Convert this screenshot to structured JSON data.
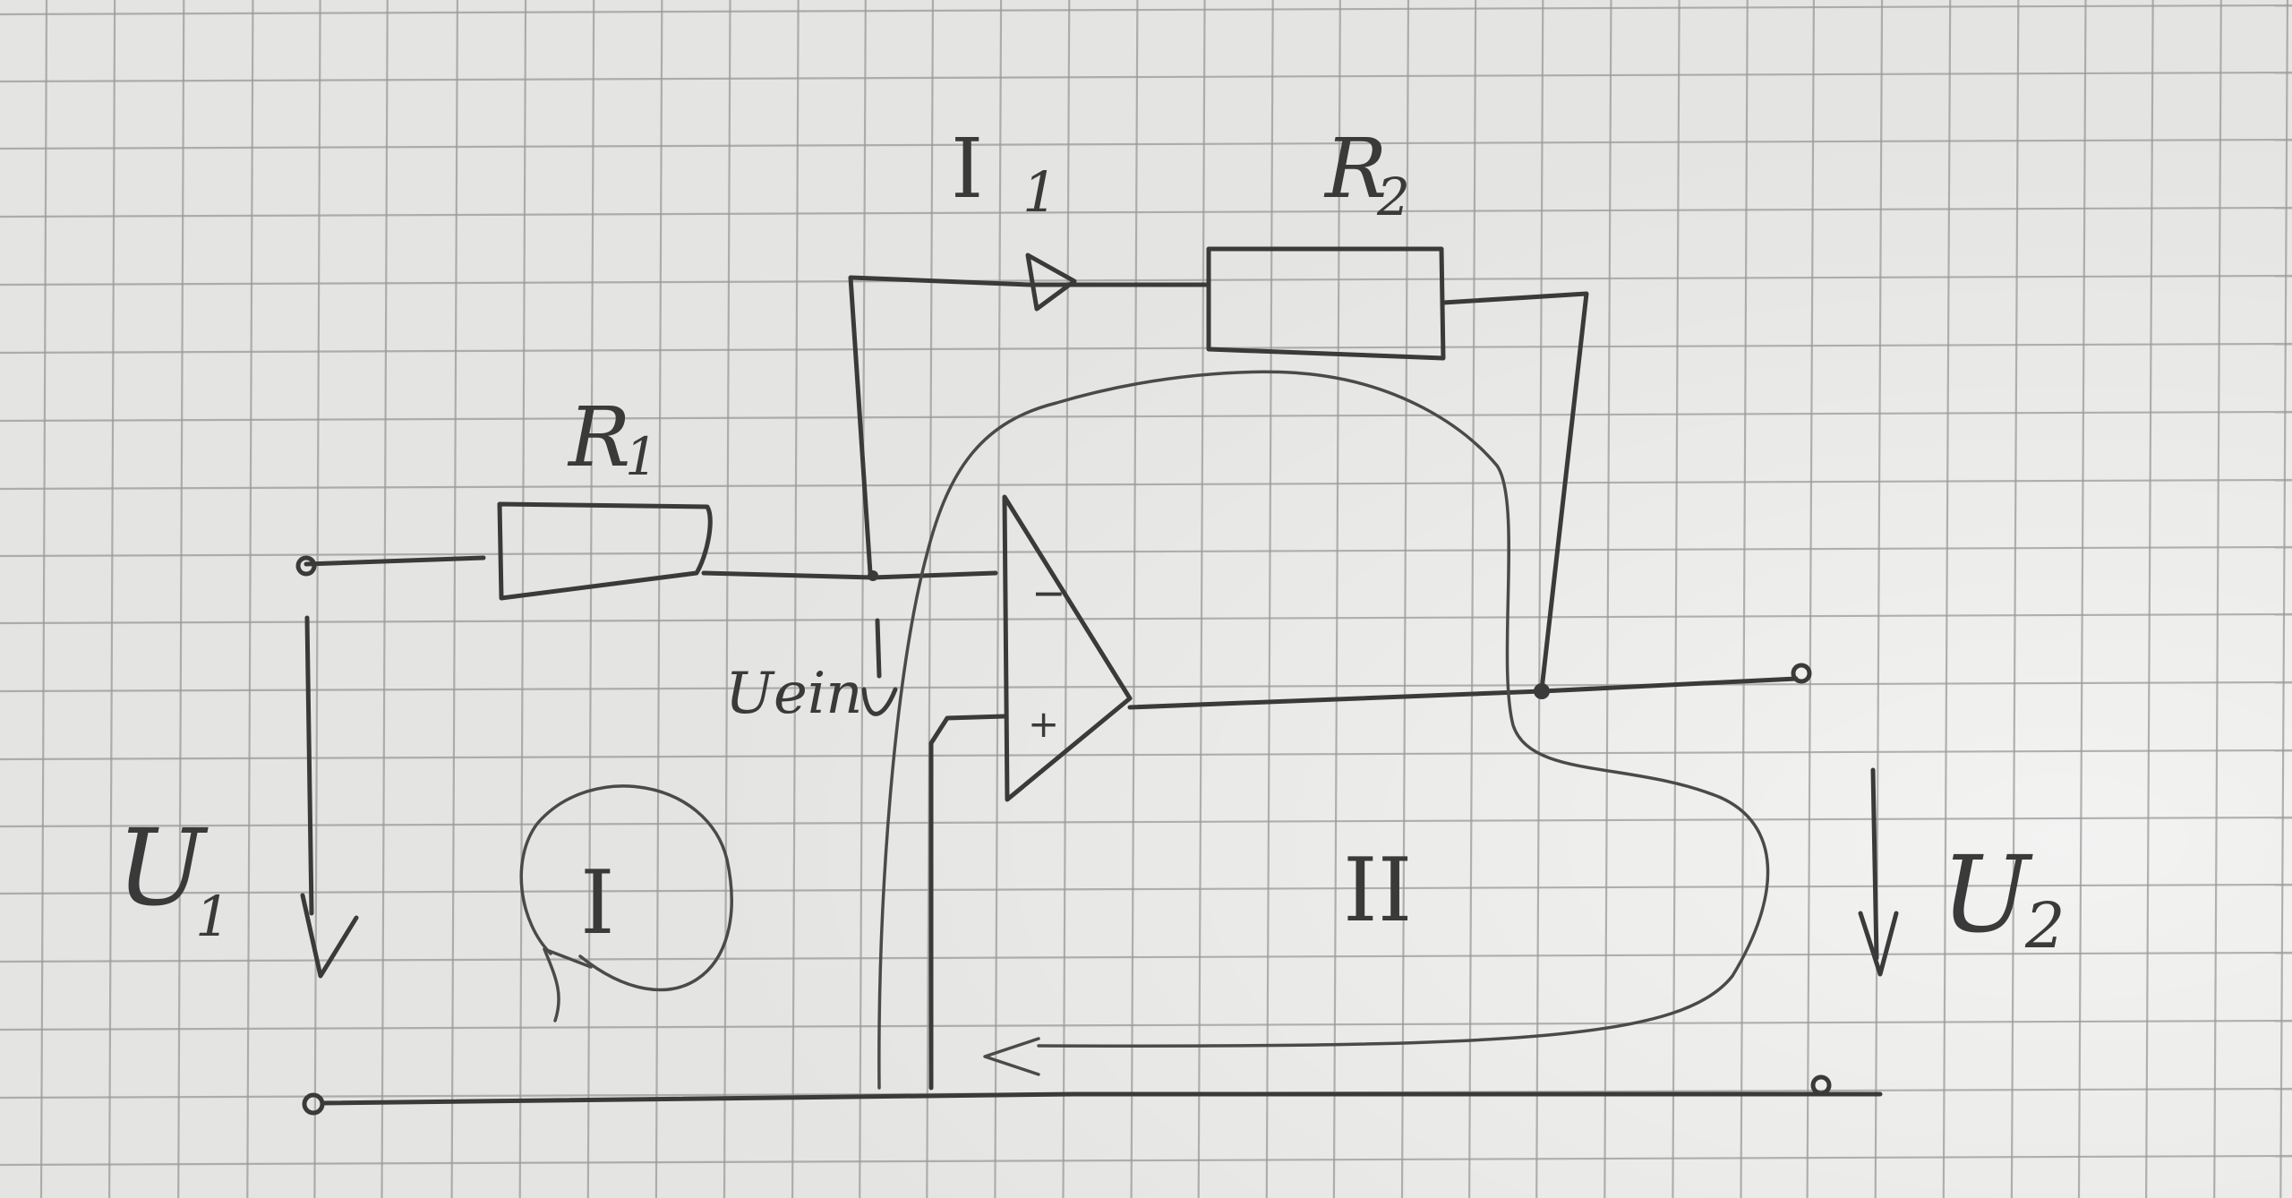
{
  "labels": {
    "r1": {
      "main": "R",
      "sub": "1"
    },
    "r2": {
      "main": "R",
      "sub": "2"
    },
    "current": {
      "main": "I",
      "sub": "1"
    },
    "u1": {
      "main": "U",
      "sub": "1"
    },
    "u2": {
      "main": "U",
      "sub": "2"
    },
    "uein": "Uein",
    "loop1": "I",
    "loop2": "II",
    "minus_input": "−",
    "plus_input": "+"
  },
  "colors": {
    "paper": "#e9e9e7",
    "grid": "#9a9a98",
    "ink": "#3a3a3a"
  }
}
